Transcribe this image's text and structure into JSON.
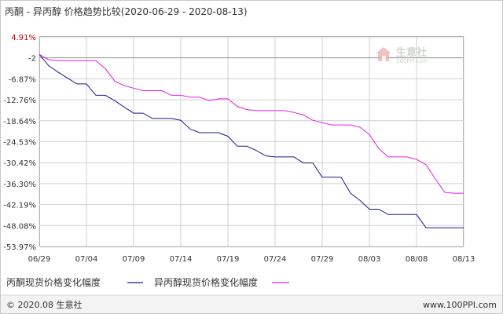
{
  "header": {
    "title": "丙酮 - 异丙醇 价格趋势比较(2020-06-29 - 2020-08-13)"
  },
  "watermark": {
    "brand": "生意社",
    "url": "100PPI.com"
  },
  "footer": {
    "copyright": "© 2020.08 生意社",
    "site": "www.100PPI.com"
  },
  "colors": {
    "series_acetone": "#1a1a8c",
    "series_ipa": "#e020e0",
    "grid": "#d0d0d0",
    "zero_line": "#999999",
    "top_label": "#cc0000"
  },
  "chart_data": {
    "type": "line",
    "title": "丙酮 - 异丙醇 价格趋势比较(2020-06-29 - 2020-08-13)",
    "xlabel": "",
    "ylabel": "",
    "x_ticks": [
      "06/29",
      "07/04",
      "07/09",
      "07/14",
      "07/19",
      "07/24",
      "07/29",
      "08/03",
      "08/08",
      "08/13"
    ],
    "x_tick_index": [
      0,
      5,
      10,
      15,
      20,
      25,
      30,
      35,
      40,
      45
    ],
    "y_ticks": [
      "4.91%",
      "-2",
      "-6.87%",
      "-12.76%",
      "-18.64%",
      "-24.53%",
      "-30.42%",
      "-36.30%",
      "-42.19%",
      "-48.08%",
      "-53.97%"
    ],
    "y_tick_values": [
      4.91,
      -0.97,
      -6.87,
      -12.76,
      -18.64,
      -24.53,
      -30.42,
      -36.3,
      -42.19,
      -48.08,
      -53.97
    ],
    "ylim": [
      -53.97,
      4.91
    ],
    "grid": true,
    "legend_position": "bottom-left",
    "series": [
      {
        "name": "丙酮现货价格变化幅度",
        "color": "#1a1a8c",
        "values": [
          0,
          -3.2,
          -5.0,
          -6.7,
          -8.3,
          -8.3,
          -11.5,
          -11.5,
          -13.0,
          -14.8,
          -16.5,
          -16.5,
          -18.0,
          -18.0,
          -18.0,
          -18.5,
          -21.0,
          -22.0,
          -22.0,
          -22.0,
          -23.0,
          -25.8,
          -25.8,
          -27.0,
          -28.5,
          -28.8,
          -28.8,
          -28.8,
          -30.5,
          -30.5,
          -34.5,
          -34.5,
          -34.5,
          -39.0,
          -41.0,
          -43.5,
          -43.5,
          -45.0,
          -45.0,
          -45.0,
          -45.0,
          -48.7,
          -48.7,
          -48.7,
          -48.7,
          -48.7
        ]
      },
      {
        "name": "异丙醇现货价格变化幅度",
        "color": "#e020e0",
        "values": [
          0,
          -1.5,
          -1.8,
          -1.8,
          -1.8,
          -1.8,
          -1.8,
          -4.0,
          -7.5,
          -8.8,
          -9.5,
          -10.2,
          -10.2,
          -10.2,
          -11.5,
          -11.5,
          -12.0,
          -12.0,
          -13.0,
          -12.5,
          -12.5,
          -14.6,
          -15.5,
          -15.8,
          -15.8,
          -15.8,
          -15.8,
          -16.3,
          -17.0,
          -18.5,
          -19.2,
          -19.8,
          -19.8,
          -19.8,
          -20.5,
          -22.5,
          -26.5,
          -28.8,
          -28.8,
          -28.8,
          -29.5,
          -31.0,
          -35.0,
          -38.8,
          -39.0,
          -39.0
        ]
      }
    ]
  }
}
